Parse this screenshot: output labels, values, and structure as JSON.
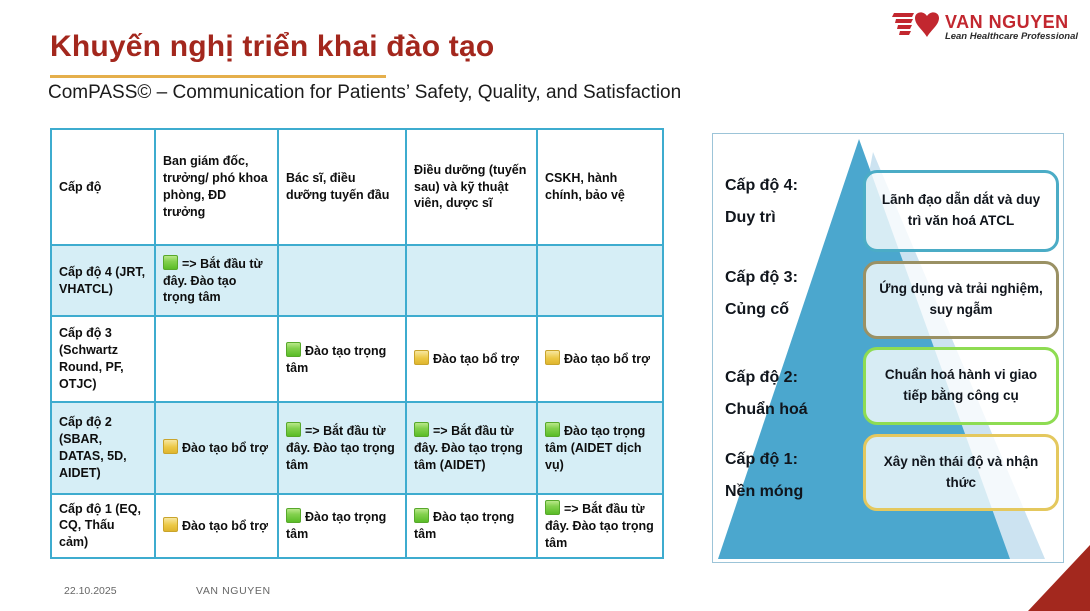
{
  "slide": {
    "title": "Khuyến nghị triển khai đào tạo",
    "subtitle": "ComPASS© – Communication for Patients’ Safety, Quality, and Satisfaction",
    "footer": {
      "date": "22.10.2025",
      "author": "VAN NGUYEN"
    }
  },
  "logo": {
    "name": "VAN NGUYEN",
    "tagline": "Lean Healthcare Professional"
  },
  "table": {
    "columns": [
      "Cấp độ",
      "Ban giám đốc, trưởng/ phó khoa phòng, ĐD trưởng",
      "Bác sĩ, điều dưỡng tuyến đầu",
      "Điều dưỡng (tuyến sau) và kỹ thuật viên, dược sĩ",
      "CSKH, hành chính, bảo vệ"
    ],
    "rows": [
      {
        "label": "Cấp độ 4 (JRT, VHATCL)",
        "cells": [
          {
            "marker": "green",
            "text": "=> Bắt đầu từ đây. Đào tạo trọng tâm"
          },
          null,
          null,
          null
        ]
      },
      {
        "label": "Cấp độ 3 (Schwartz Round, PF, OTJC)",
        "cells": [
          null,
          {
            "marker": "green",
            "text": "Đào tạo trọng tâm"
          },
          {
            "marker": "yellow",
            "text": "Đào tạo bổ trợ"
          },
          {
            "marker": "yellow",
            "text": "Đào tạo bổ trợ"
          }
        ]
      },
      {
        "label": "Cấp độ 2 (SBAR, DATAS, 5D, AIDET)",
        "cells": [
          {
            "marker": "yellow",
            "text": "Đào tạo bổ trợ"
          },
          {
            "marker": "green",
            "text": "=> Bắt đầu từ đây. Đào tạo trọng tâm"
          },
          {
            "marker": "green",
            "text": "=> Bắt đầu từ đây. Đào tạo trọng tâm (AIDET)"
          },
          {
            "marker": "green",
            "text": "Đào tạo trọng tâm (AIDET dịch vụ)"
          }
        ]
      },
      {
        "label": "Cấp độ 1 (EQ, CQ, Thấu cảm)",
        "cells": [
          {
            "marker": "yellow",
            "text": "Đào tạo bổ trợ"
          },
          {
            "marker": "green",
            "text": "Đào tạo trọng tâm"
          },
          {
            "marker": "green",
            "text": "Đào tạo trọng tâm"
          },
          {
            "marker": "green",
            "text": "=> Bắt đầu từ đây. Đào tạo trọng tâm"
          }
        ]
      }
    ]
  },
  "pyramid": {
    "levels": [
      {
        "label_line1": "Cấp độ 4:",
        "label_line2": "Duy trì",
        "box": "Lãnh đạo dẫn dắt và duy trì văn hoá ATCL",
        "box_border": "#4BACC6"
      },
      {
        "label_line1": "Cấp độ 3:",
        "label_line2": "Củng cố",
        "box": "Ứng dụng và trải nghiệm, suy ngẫm",
        "box_border": "#9A9164"
      },
      {
        "label_line1": "Cấp độ 2:",
        "label_line2": "Chuẩn hoá",
        "box": "Chuẩn hoá hành vi giao tiếp bằng công cụ",
        "box_border": "#8EDC52"
      },
      {
        "label_line1": "Cấp độ 1:",
        "label_line2": "Nền móng",
        "box": "Xây nền thái độ và nhận thức",
        "box_border": "#E4C85E"
      }
    ]
  },
  "colors": {
    "title_red": "#A3271D",
    "underline_gold": "#E5AF4B",
    "table_border": "#3EACCF",
    "row_tint": "#D6EEF6",
    "marker_green": "#6CC832",
    "marker_yellow": "#E8C33C",
    "pyramid_blue": "#4BA7CE",
    "pyramid_shadow": "#CCE3F1",
    "corner_red": "#A3281E",
    "logo_red": "#C2272F"
  }
}
